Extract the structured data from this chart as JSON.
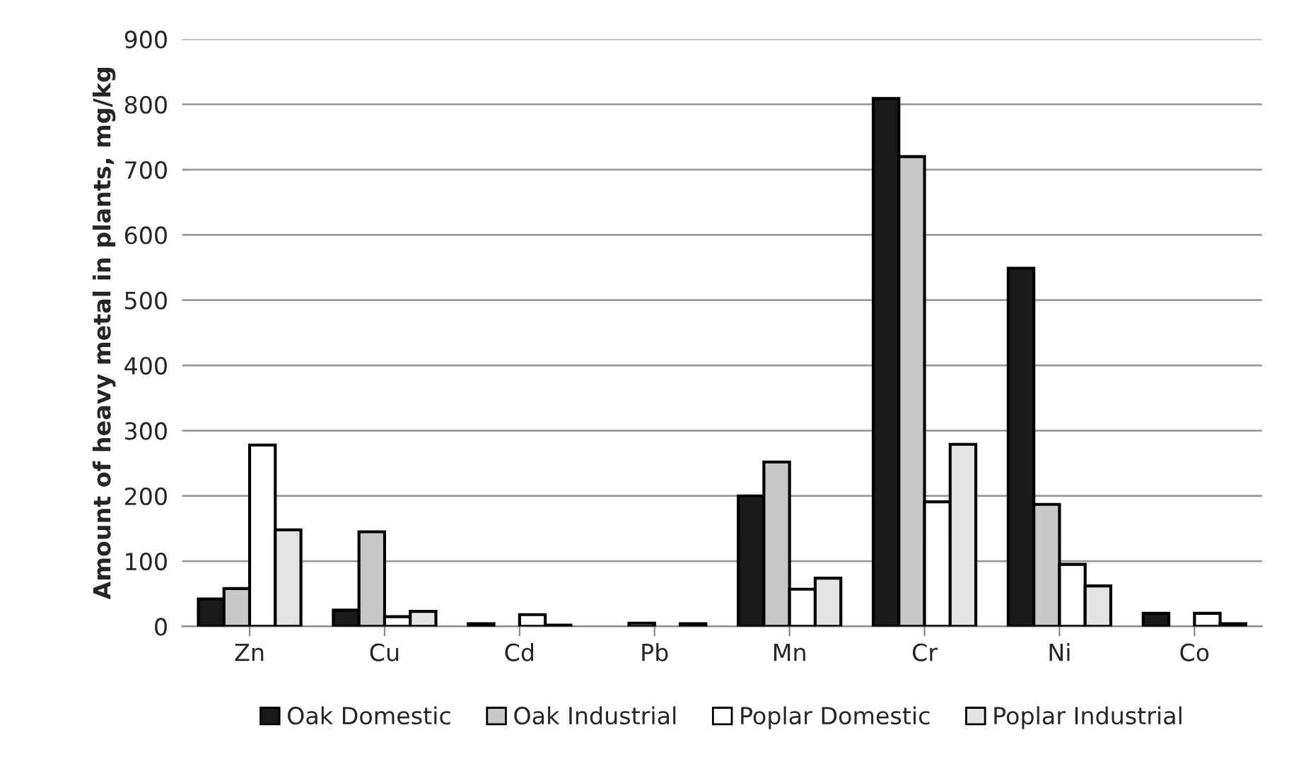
{
  "chart_data": {
    "type": "bar",
    "ylabel": "Amount of heavy metal in plants, mg/kg",
    "categories": [
      "Zn",
      "Cu",
      "Cd",
      "Pb",
      "Mn",
      "Cr",
      "Ni",
      "Co"
    ],
    "series": [
      {
        "name": "Oak Domestic",
        "color": "#1a1a1a",
        "values": [
          42,
          25,
          4,
          0,
          200,
          809,
          549,
          20
        ]
      },
      {
        "name": "Oak Industrial",
        "color": "#c8c8c8",
        "values": [
          58,
          145,
          0,
          5,
          252,
          720,
          187,
          0
        ]
      },
      {
        "name": "Poplar Domestic",
        "color": "#ffffff",
        "values": [
          278,
          15,
          18,
          0,
          57,
          191,
          95,
          20
        ]
      },
      {
        "name": "Poplar Industrial",
        "color": "#e4e4e4",
        "values": [
          148,
          23,
          2,
          4,
          74,
          279,
          62,
          4
        ]
      }
    ],
    "ylim": [
      0,
      900
    ],
    "yticks": [
      0,
      100,
      200,
      300,
      400,
      500,
      600,
      700,
      800,
      900
    ],
    "grid": "y",
    "legend": "bottom"
  }
}
